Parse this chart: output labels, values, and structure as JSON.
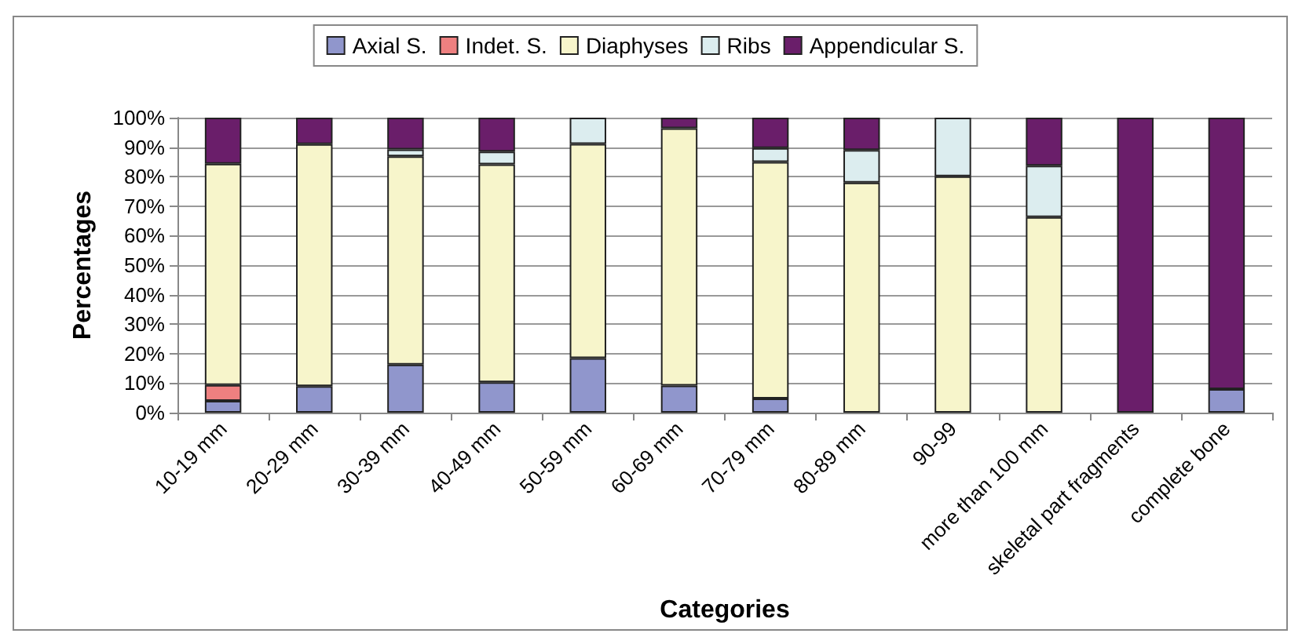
{
  "chart_data": {
    "type": "bar",
    "stacked": true,
    "xlabel": "Categories",
    "ylabel": "Percentages",
    "categories": [
      "10-19 mm",
      "20-29 mm",
      "30-39 mm",
      "40-49 mm",
      "50-59 mm",
      "60-69 mm",
      "70-79 mm",
      "80-89 mm",
      "90-99",
      "more than 100 mm",
      "skeletal part fragments",
      "complete bone"
    ],
    "series": [
      {
        "name": "Axial S.",
        "color": "#9096cc",
        "values": [
          4,
          9,
          16.3,
          10.3,
          18.5,
          9.2,
          4.8,
          null,
          null,
          null,
          null,
          8
        ]
      },
      {
        "name": "Indet. S.",
        "color": "#ee8080",
        "values": [
          5.4,
          null,
          null,
          null,
          null,
          null,
          null,
          null,
          null,
          null,
          null,
          null
        ]
      },
      {
        "name": "Diaphyses",
        "color": "#f7f5cb",
        "values": [
          75,
          82,
          70.6,
          73.9,
          72.6,
          87.2,
          80.2,
          78,
          80.1,
          66.3,
          null,
          null
        ]
      },
      {
        "name": "Ribs",
        "color": "#dcedef",
        "values": [
          null,
          null,
          2.3,
          4.3,
          8.9,
          null,
          4.7,
          11,
          19.9,
          17.4,
          null,
          null
        ]
      },
      {
        "name": "Appendicular S.",
        "color": "#6a1e6a",
        "values": [
          15.6,
          9,
          10.8,
          11.5,
          null,
          3.6,
          10.3,
          11,
          null,
          16.3,
          100,
          92
        ]
      }
    ],
    "ylim": [
      0,
      100
    ],
    "yticks": [
      {
        "value": 0,
        "label": "0%"
      },
      {
        "value": 10,
        "label": "10%"
      },
      {
        "value": 20,
        "label": "20%"
      },
      {
        "value": 30,
        "label": "30%"
      },
      {
        "value": 40,
        "label": "40%"
      },
      {
        "value": 50,
        "label": "50%"
      },
      {
        "value": 60,
        "label": "60%"
      },
      {
        "value": 70,
        "label": "70%"
      },
      {
        "value": 80,
        "label": "80%"
      },
      {
        "value": 90,
        "label": "90%"
      },
      {
        "value": 100,
        "label": "100%"
      }
    ],
    "grid": "y",
    "legend": "top"
  }
}
